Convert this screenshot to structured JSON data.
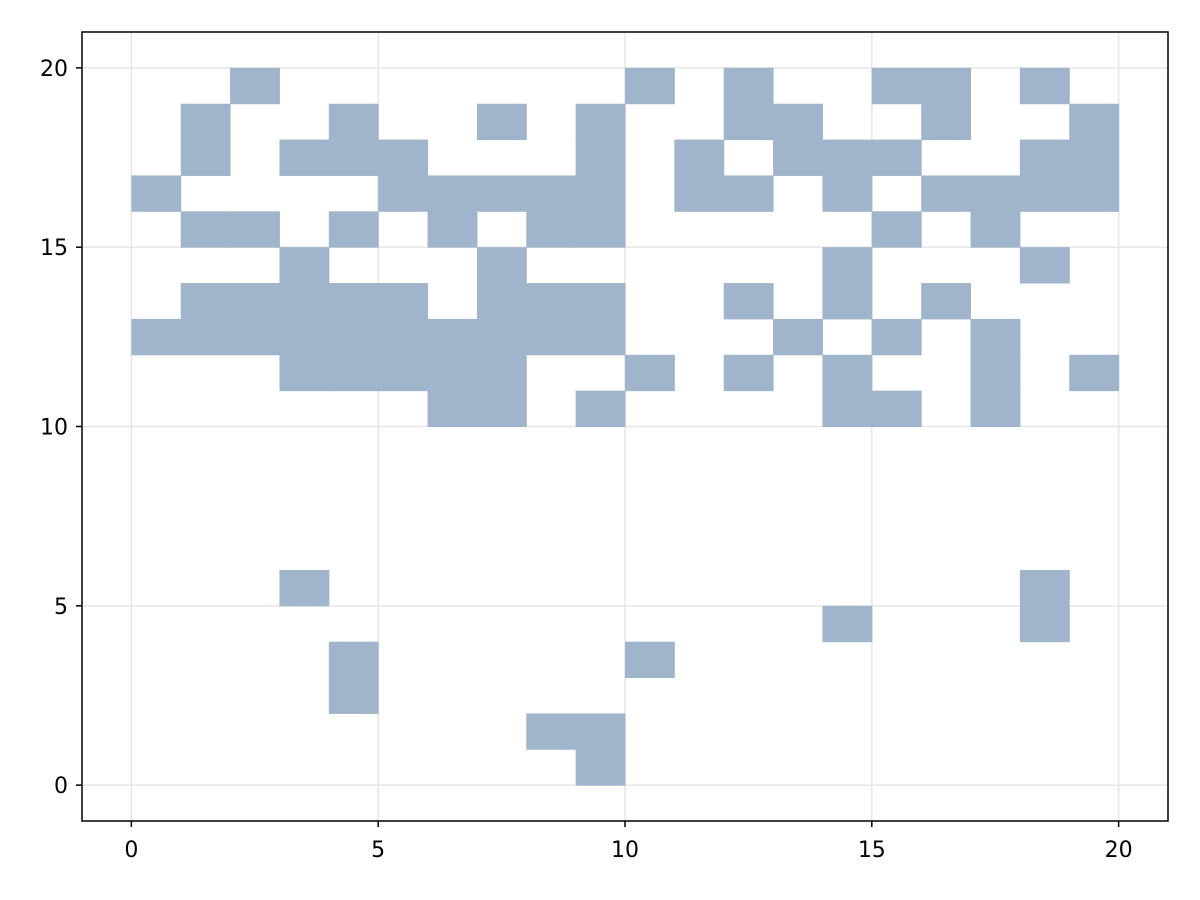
{
  "chart_data": {
    "type": "heatmap",
    "title": "",
    "xlabel": "",
    "ylabel": "",
    "xlim": [
      -1,
      21
    ],
    "ylim": [
      -1,
      21
    ],
    "grid": true,
    "colors": {
      "cell": "#a0b5cc",
      "grid": "#e6e6e6",
      "frame": "#000000",
      "background": "#ffffff"
    },
    "x_ticks": [
      0,
      5,
      10,
      15,
      20
    ],
    "y_ticks": [
      0,
      5,
      10,
      15,
      20
    ],
    "x_tick_labels": [
      "0",
      "5",
      "10",
      "15",
      "20"
    ],
    "y_tick_labels": [
      "0",
      "5",
      "10",
      "15",
      "20"
    ],
    "cell_size": [
      1,
      1
    ],
    "filled_cells": [
      [
        9,
        0
      ],
      [
        8,
        1
      ],
      [
        9,
        1
      ],
      [
        4,
        2
      ],
      [
        4,
        3
      ],
      [
        10,
        3
      ],
      [
        14,
        4
      ],
      [
        18,
        4
      ],
      [
        3,
        5
      ],
      [
        18,
        5
      ],
      [
        6,
        10
      ],
      [
        7,
        10
      ],
      [
        9,
        10
      ],
      [
        14,
        10
      ],
      [
        15,
        10
      ],
      [
        17,
        10
      ],
      [
        3,
        11
      ],
      [
        4,
        11
      ],
      [
        5,
        11
      ],
      [
        6,
        11
      ],
      [
        7,
        11
      ],
      [
        10,
        11
      ],
      [
        12,
        11
      ],
      [
        14,
        11
      ],
      [
        17,
        11
      ],
      [
        19,
        11
      ],
      [
        0,
        12
      ],
      [
        1,
        12
      ],
      [
        2,
        12
      ],
      [
        3,
        12
      ],
      [
        4,
        12
      ],
      [
        5,
        12
      ],
      [
        6,
        12
      ],
      [
        7,
        12
      ],
      [
        8,
        12
      ],
      [
        9,
        12
      ],
      [
        13,
        12
      ],
      [
        15,
        12
      ],
      [
        17,
        12
      ],
      [
        1,
        13
      ],
      [
        2,
        13
      ],
      [
        3,
        13
      ],
      [
        4,
        13
      ],
      [
        5,
        13
      ],
      [
        7,
        13
      ],
      [
        8,
        13
      ],
      [
        9,
        13
      ],
      [
        12,
        13
      ],
      [
        14,
        13
      ],
      [
        16,
        13
      ],
      [
        3,
        14
      ],
      [
        7,
        14
      ],
      [
        14,
        14
      ],
      [
        18,
        14
      ],
      [
        1,
        15
      ],
      [
        2,
        15
      ],
      [
        4,
        15
      ],
      [
        6,
        15
      ],
      [
        8,
        15
      ],
      [
        9,
        15
      ],
      [
        15,
        15
      ],
      [
        17,
        15
      ],
      [
        0,
        16
      ],
      [
        5,
        16
      ],
      [
        6,
        16
      ],
      [
        7,
        16
      ],
      [
        8,
        16
      ],
      [
        9,
        16
      ],
      [
        11,
        16
      ],
      [
        12,
        16
      ],
      [
        14,
        16
      ],
      [
        16,
        16
      ],
      [
        17,
        16
      ],
      [
        18,
        16
      ],
      [
        19,
        16
      ],
      [
        1,
        17
      ],
      [
        3,
        17
      ],
      [
        4,
        17
      ],
      [
        5,
        17
      ],
      [
        9,
        17
      ],
      [
        11,
        17
      ],
      [
        13,
        17
      ],
      [
        14,
        17
      ],
      [
        15,
        17
      ],
      [
        18,
        17
      ],
      [
        19,
        17
      ],
      [
        1,
        18
      ],
      [
        4,
        18
      ],
      [
        7,
        18
      ],
      [
        9,
        18
      ],
      [
        12,
        18
      ],
      [
        13,
        18
      ],
      [
        16,
        18
      ],
      [
        19,
        18
      ],
      [
        2,
        19
      ],
      [
        10,
        19
      ],
      [
        12,
        19
      ],
      [
        15,
        19
      ],
      [
        16,
        19
      ],
      [
        18,
        19
      ]
    ]
  }
}
